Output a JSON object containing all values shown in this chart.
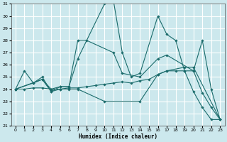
{
  "xlabel": "Humidex (Indice chaleur)",
  "xlim": [
    -0.5,
    23.5
  ],
  "ylim": [
    21,
    31
  ],
  "yticks": [
    21,
    22,
    23,
    24,
    25,
    26,
    27,
    28,
    29,
    30,
    31
  ],
  "xticks": [
    0,
    1,
    2,
    3,
    4,
    5,
    6,
    7,
    8,
    9,
    10,
    11,
    12,
    13,
    14,
    15,
    16,
    17,
    18,
    19,
    20,
    21,
    22,
    23
  ],
  "bg_color": "#cce8ed",
  "grid_color": "#ffffff",
  "line_color": "#1a6b6b",
  "lines": [
    {
      "x": [
        0,
        1,
        2,
        3,
        4,
        5,
        6,
        7,
        10,
        11,
        12,
        13,
        14,
        16,
        17,
        18,
        19,
        20,
        21,
        22,
        23
      ],
      "y": [
        24,
        25.5,
        24.5,
        25,
        23.8,
        24.2,
        24.2,
        26.5,
        31.0,
        31.3,
        27.0,
        25.0,
        25.3,
        30.0,
        28.5,
        28.0,
        25.5,
        23.8,
        22.5,
        21.5,
        21.5
      ]
    },
    {
      "x": [
        0,
        3,
        4,
        5,
        6,
        7,
        8,
        11,
        12,
        14,
        16,
        17,
        20,
        21,
        22,
        23
      ],
      "y": [
        24,
        24.8,
        24.0,
        24.2,
        24.2,
        28.0,
        28.0,
        27.0,
        25.3,
        25.0,
        26.5,
        26.8,
        25.5,
        28.0,
        24.0,
        21.5
      ]
    },
    {
      "x": [
        0,
        1,
        2,
        3,
        4,
        5,
        6,
        7,
        8,
        9,
        10,
        11,
        12,
        13,
        14,
        15,
        16,
        17,
        18,
        19,
        20,
        21,
        22,
        23
      ],
      "y": [
        24,
        24.0,
        24.1,
        24.1,
        24.0,
        24.0,
        24.1,
        24.1,
        24.2,
        24.3,
        24.4,
        24.5,
        24.6,
        24.5,
        24.7,
        24.8,
        25.2,
        25.5,
        25.5,
        25.5,
        25.5,
        23.7,
        22.5,
        21.5
      ]
    },
    {
      "x": [
        0,
        2,
        3,
        4,
        5,
        6,
        7,
        10,
        14,
        16,
        17,
        19,
        20,
        23
      ],
      "y": [
        24,
        24.5,
        24.8,
        23.8,
        24.0,
        24.0,
        24.0,
        23.0,
        23.0,
        25.2,
        25.5,
        25.8,
        25.8,
        21.5
      ]
    }
  ]
}
